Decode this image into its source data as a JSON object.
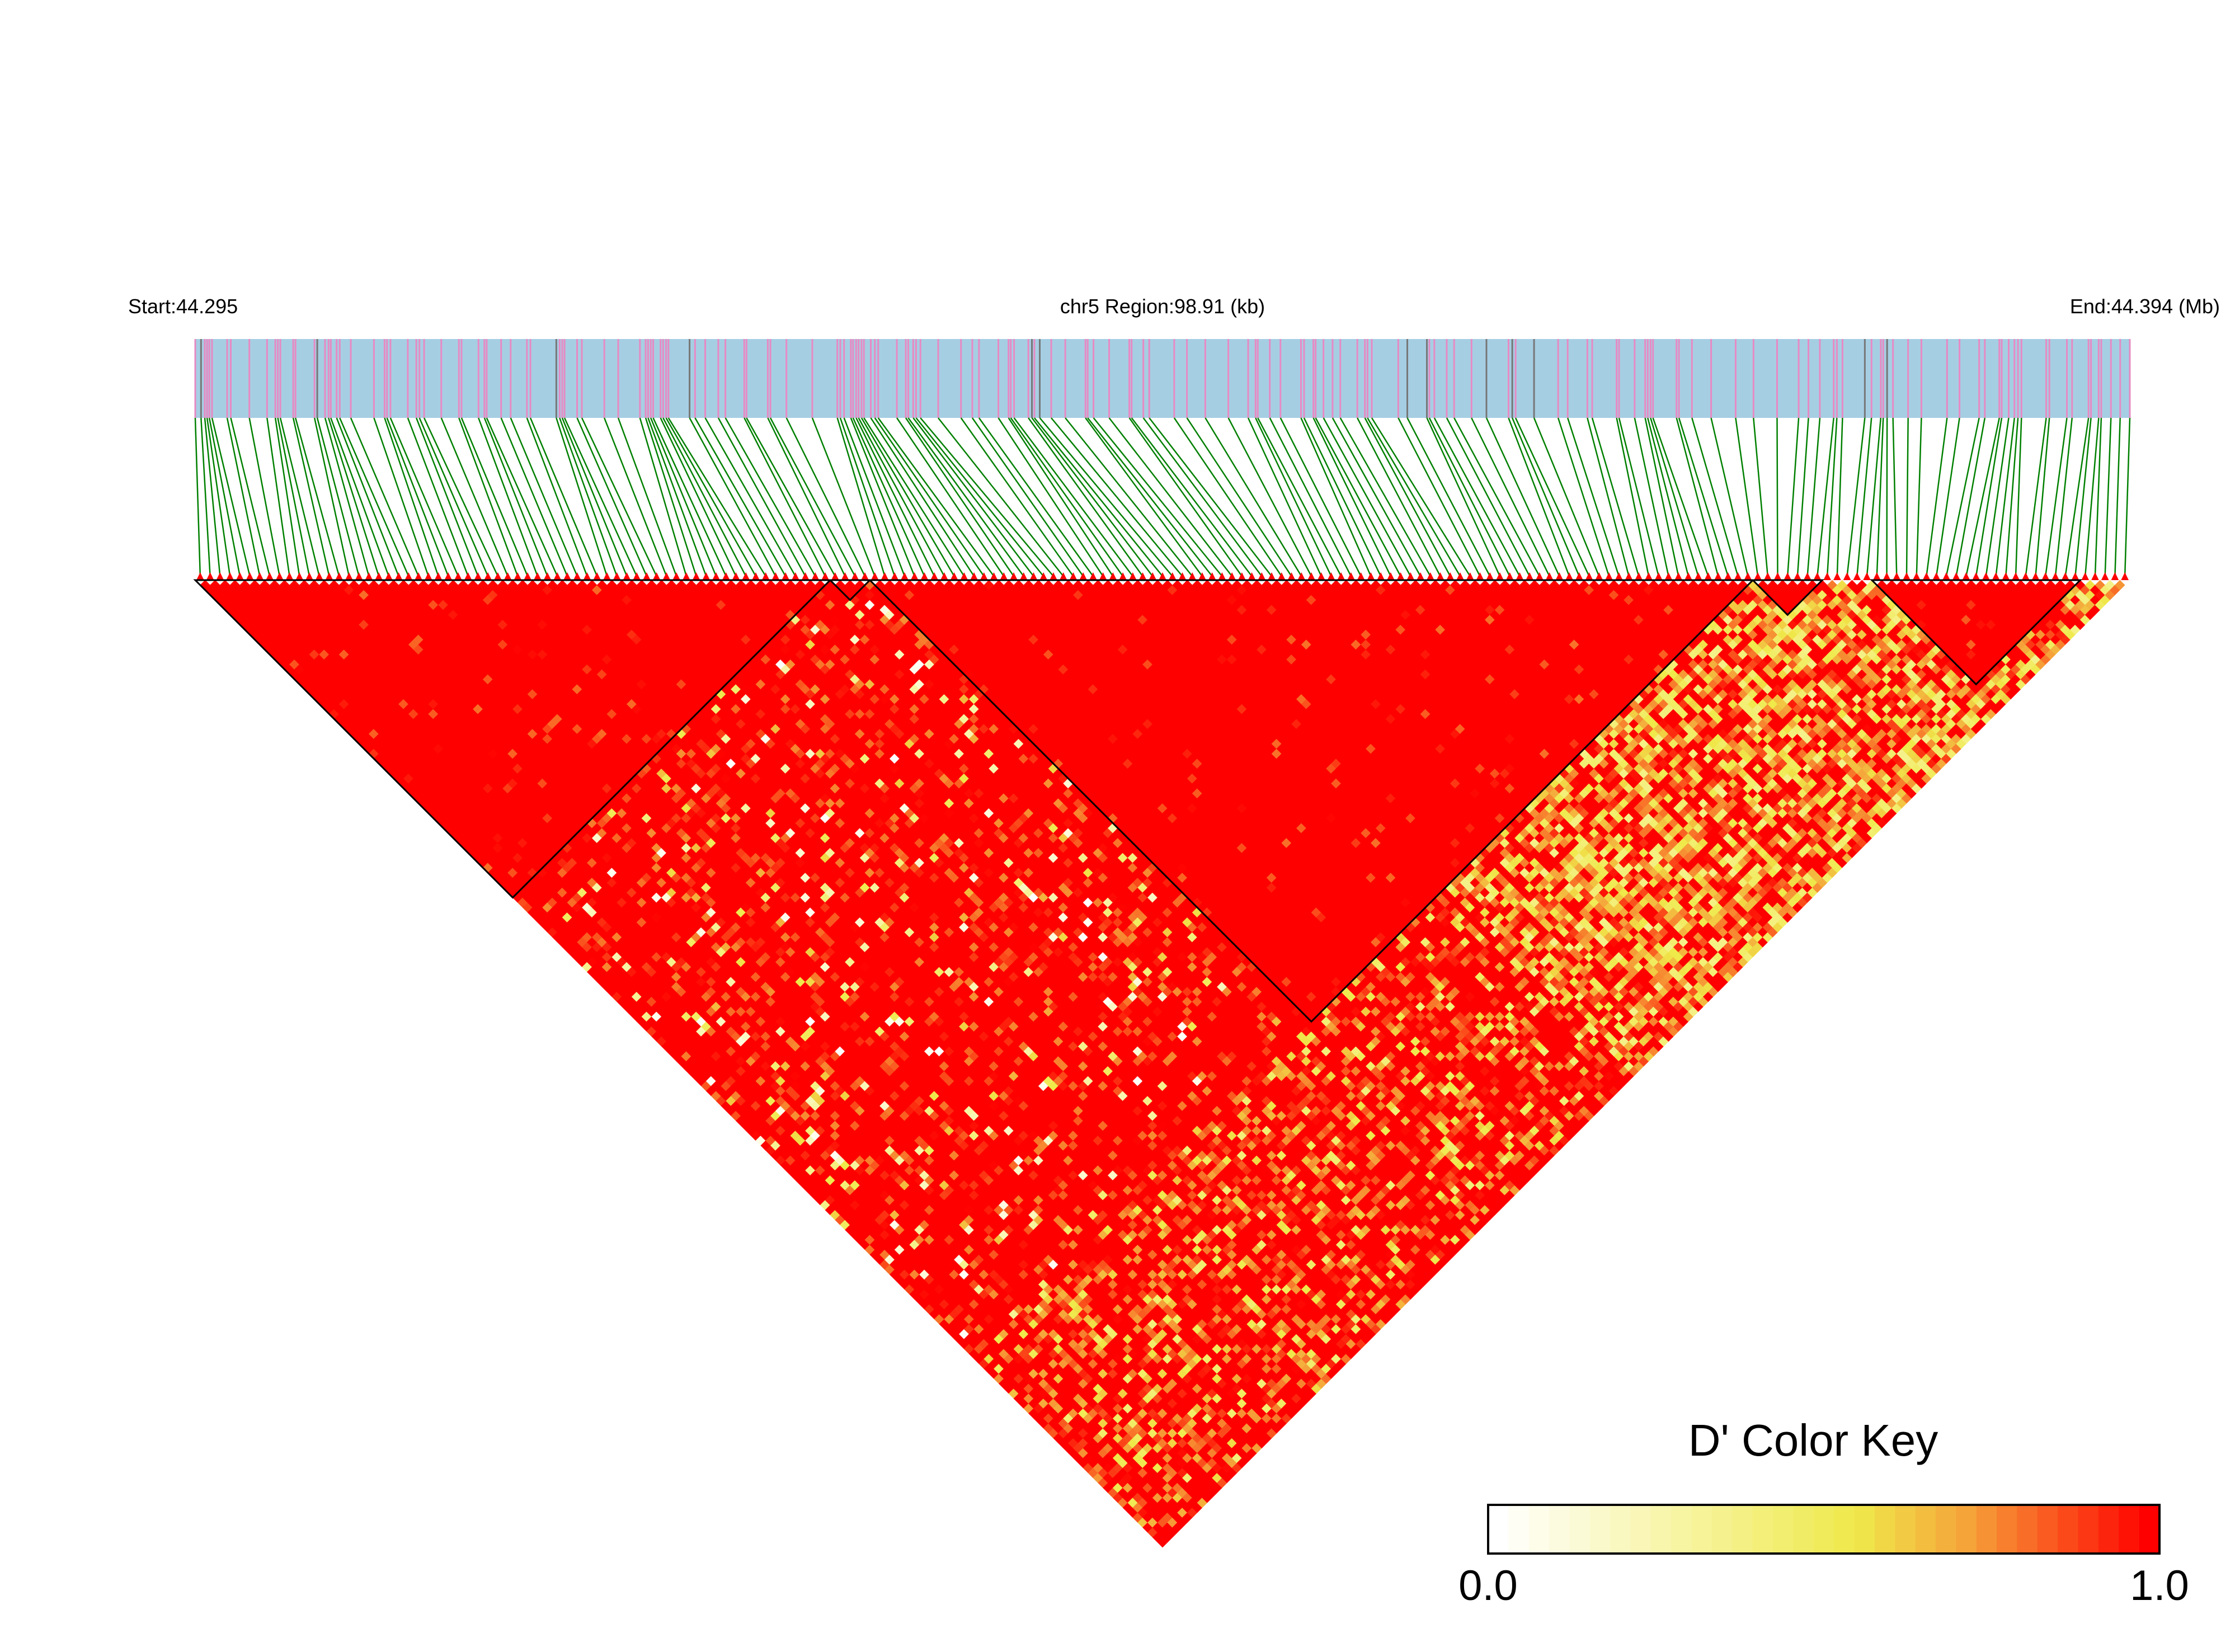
{
  "chart_data": {
    "type": "heatmap",
    "subtype": "LD triangle (D')",
    "header": {
      "start_label": "Start:44.295",
      "region_label": "chr5 Region:98.91 (kb)",
      "end_label": "End:44.394 (Mb)"
    },
    "region": {
      "chrom": "chr5",
      "start_mb": 44.295,
      "end_mb": 44.394,
      "length_kb": 98.91
    },
    "n_snps": 195,
    "seed": 20240517,
    "blocks": [
      {
        "from": 0,
        "to": 63
      },
      {
        "from": 64,
        "to": 67
      },
      {
        "from": 68,
        "to": 156
      },
      {
        "from": 157,
        "to": 163
      },
      {
        "from": 169,
        "to": 189
      }
    ],
    "legend": {
      "title": "D' Color Key",
      "min_label": "0.0",
      "max_label": "1.0",
      "range": [
        0,
        1
      ],
      "steps": 33
    },
    "colors": {
      "track_bg": "#a6cee3",
      "snp_tick": "#e78ac3",
      "connector": "#008000",
      "low": "#ffffff",
      "mid": "#efe94a",
      "high": "#ff0000",
      "block_outline": "#000000"
    }
  }
}
